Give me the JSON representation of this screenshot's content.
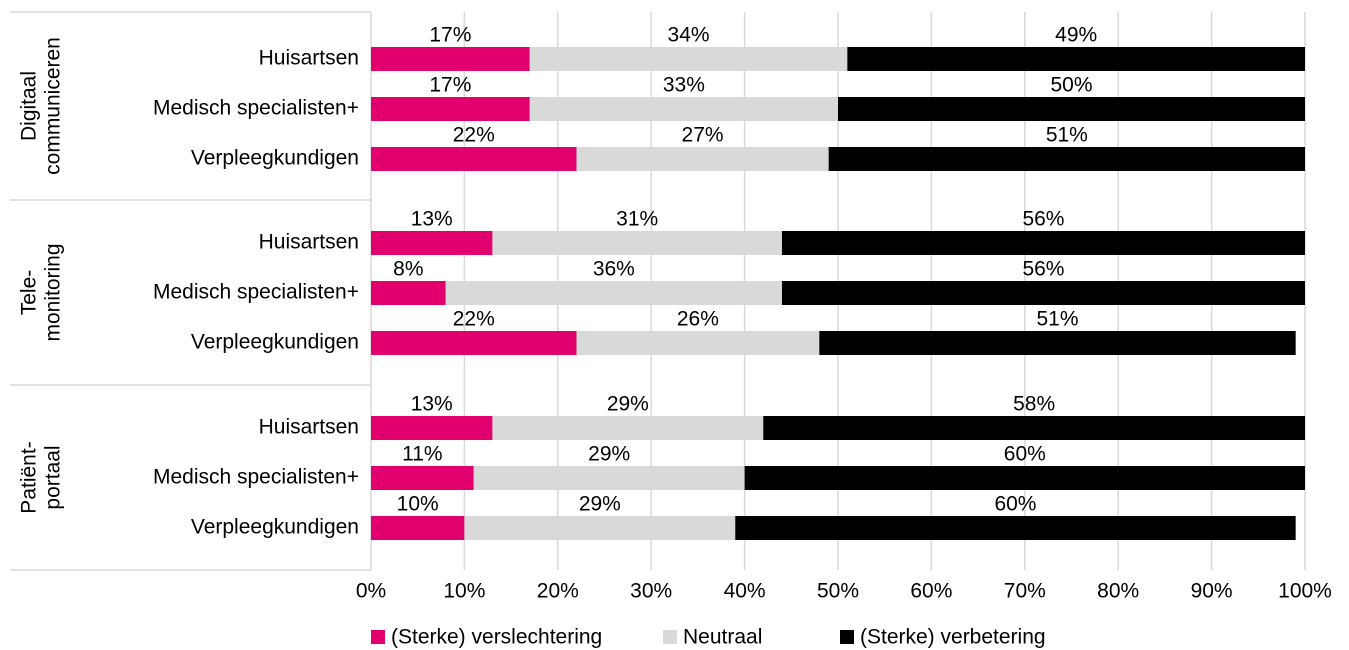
{
  "chart_data": {
    "type": "stacked-barh",
    "groups": [
      {
        "label": [
          "Digitaal",
          "communiceren"
        ],
        "categories": [
          "Huisartsen",
          "Medisch specialisten+",
          "Verpleegkundigen"
        ]
      },
      {
        "label": [
          "Tele-",
          "monitoring"
        ],
        "categories": [
          "Huisartsen",
          "Medisch specialisten+",
          "Verpleegkundigen"
        ]
      },
      {
        "label": [
          "Patiënt-",
          "portaal"
        ],
        "categories": [
          "Huisartsen",
          "Medisch specialisten+",
          "Verpleegkundigen"
        ]
      }
    ],
    "series": [
      {
        "name": "(Sterke) verslechtering",
        "color": "#e2006f",
        "values": [
          17,
          17,
          22,
          13,
          8,
          22,
          13,
          11,
          10
        ],
        "value_labels": [
          "17%",
          "17%",
          "22%",
          "13%",
          "8%",
          "22%",
          "13%",
          "11%",
          "10%"
        ]
      },
      {
        "name": "Neutraal",
        "color": "#d9d9d9",
        "values": [
          34,
          33,
          27,
          31,
          36,
          26,
          29,
          29,
          29
        ],
        "value_labels": [
          "34%",
          "33%",
          "27%",
          "31%",
          "36%",
          "26%",
          "29%",
          "29%",
          "29%"
        ]
      },
      {
        "name": "(Sterke) verbetering",
        "color": "#000000",
        "values": [
          49,
          50,
          51,
          56,
          56,
          51,
          58,
          60,
          60
        ],
        "value_labels": [
          "49%",
          "50%",
          "51%",
          "56%",
          "56%",
          "51%",
          "58%",
          "60%",
          "60%"
        ]
      }
    ],
    "xlim": [
      0,
      100
    ],
    "xticks": [
      {
        "value": 0,
        "label": "0%"
      },
      {
        "value": 10,
        "label": "10%"
      },
      {
        "value": 20,
        "label": "20%"
      },
      {
        "value": 30,
        "label": "30%"
      },
      {
        "value": 40,
        "label": "40%"
      },
      {
        "value": 50,
        "label": "50%"
      },
      {
        "value": 60,
        "label": "60%"
      },
      {
        "value": 70,
        "label": "70%"
      },
      {
        "value": 80,
        "label": "80%"
      },
      {
        "value": 90,
        "label": "90%"
      },
      {
        "value": 100,
        "label": "100%"
      }
    ],
    "grid": true,
    "legend": "bottom"
  }
}
